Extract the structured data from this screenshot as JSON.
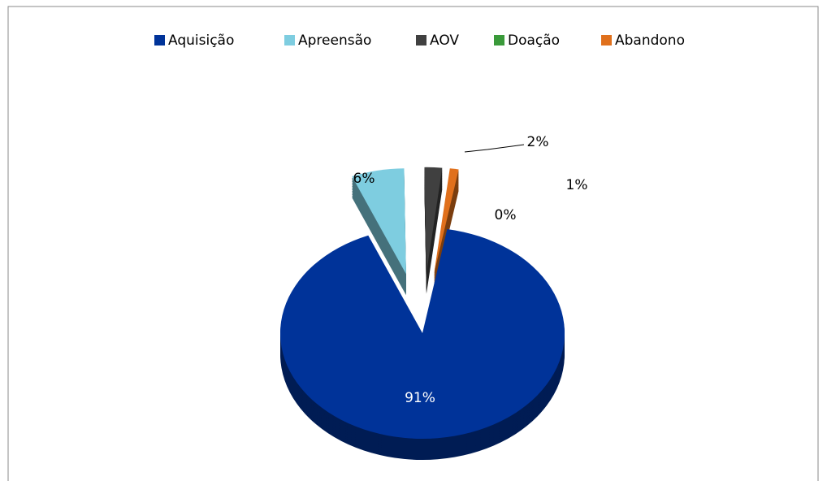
{
  "chart_data": {
    "type": "pie",
    "categories": [
      "Aquisição",
      "Apreensão",
      "AOV",
      "Doação",
      "Abandono"
    ],
    "values": [
      91,
      6,
      2,
      0,
      1
    ],
    "value_labels": [
      "91%",
      "6%",
      "2%",
      "0%",
      "1%"
    ],
    "colors": [
      "#003399",
      "#7ecde0",
      "#404040",
      "#3a9a3a",
      "#e0701c"
    ],
    "legend": "top",
    "three_d": true,
    "exploded": true
  }
}
